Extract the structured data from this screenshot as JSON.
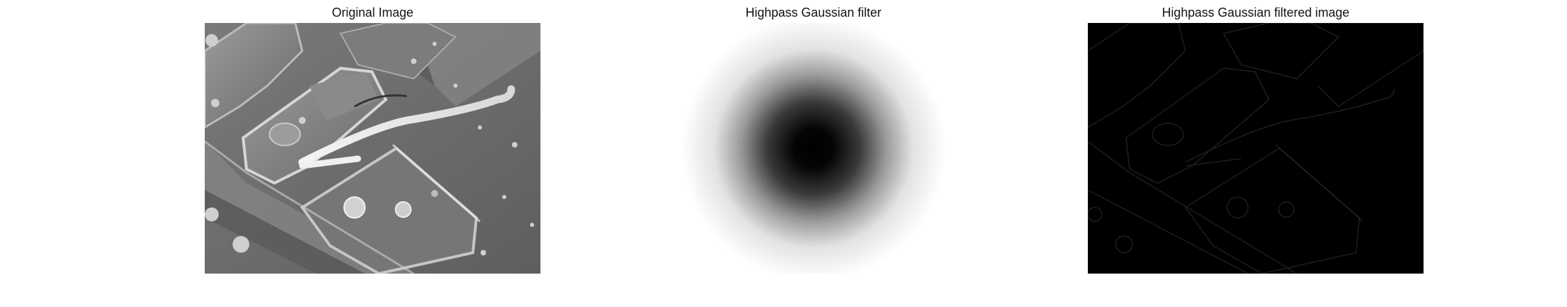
{
  "figure": {
    "panels": [
      {
        "title": "Original Image"
      },
      {
        "title": "Highpass Gaussian filter"
      },
      {
        "title": "Highpass Gaussian filtered image"
      }
    ]
  }
}
